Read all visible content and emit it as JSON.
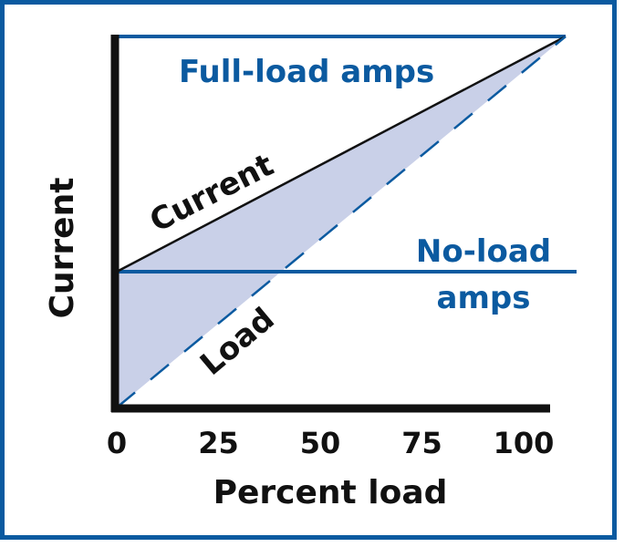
{
  "colors": {
    "frame": "#0b5aa0",
    "accent": "#0b5aa0",
    "axis": "#111111",
    "fill": "#c9d0e8",
    "current": "#111111"
  },
  "chart_data": {
    "type": "line",
    "xlabel": "Percent load",
    "ylabel": "Current",
    "x_ticks": [
      "0",
      "25",
      "50",
      "75",
      "100"
    ],
    "xlim": [
      0,
      100
    ],
    "grid": false,
    "annotations": {
      "full_load": "Full-load amps",
      "no_load_1": "No-load",
      "no_load_2": "amps",
      "current": "Current",
      "load": "Load"
    },
    "series": [
      {
        "name": "Current",
        "style": "solid",
        "color": "#111111"
      },
      {
        "name": "Load",
        "style": "dashed",
        "color": "#0b5aa0"
      }
    ]
  }
}
